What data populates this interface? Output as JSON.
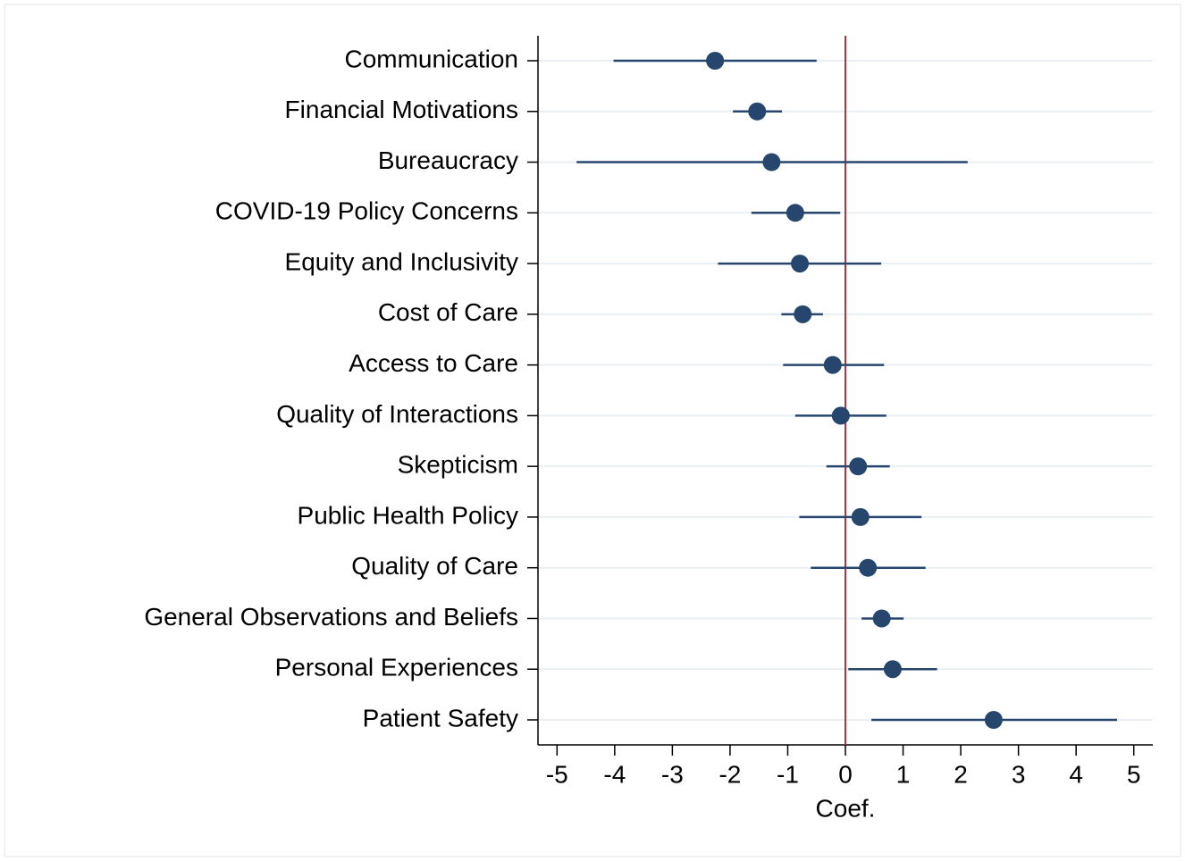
{
  "chart_data": {
    "type": "coefplot",
    "x_label": "Coef.",
    "categories": [
      "Communication",
      "Financial Motivations",
      "Bureaucracy",
      "COVID-19 Policy Concerns",
      "Equity and Inclusivity",
      "Cost of Care",
      "Access to Care",
      "Quality of Interactions",
      "Skepticism",
      "Public Health Policy",
      "Quality of Care",
      "General Observations and Beliefs",
      "Personal Experiences",
      "Patient Safety"
    ],
    "values": [
      -2.26,
      -1.53,
      -1.28,
      -0.87,
      -0.79,
      -0.74,
      -0.22,
      -0.08,
      0.22,
      0.26,
      0.39,
      0.63,
      0.82,
      2.57
    ],
    "ci_low": [
      -4.02,
      -1.95,
      -4.66,
      -1.63,
      -2.21,
      -1.11,
      -1.08,
      -0.87,
      -0.33,
      -0.8,
      -0.6,
      0.28,
      0.05,
      0.45
    ],
    "ci_high": [
      -0.5,
      -1.1,
      2.12,
      -0.09,
      0.62,
      -0.39,
      0.67,
      0.71,
      0.77,
      1.32,
      1.39,
      1.01,
      1.59,
      4.71
    ],
    "color": "#26466e",
    "xline": 0,
    "xline_color": "#b5303a",
    "xlim": [
      -5.33,
      5.33
    ],
    "xticks": [
      -5,
      -4,
      -3,
      -2,
      -1,
      0,
      1,
      2,
      3,
      4,
      5
    ],
    "grid": true
  }
}
